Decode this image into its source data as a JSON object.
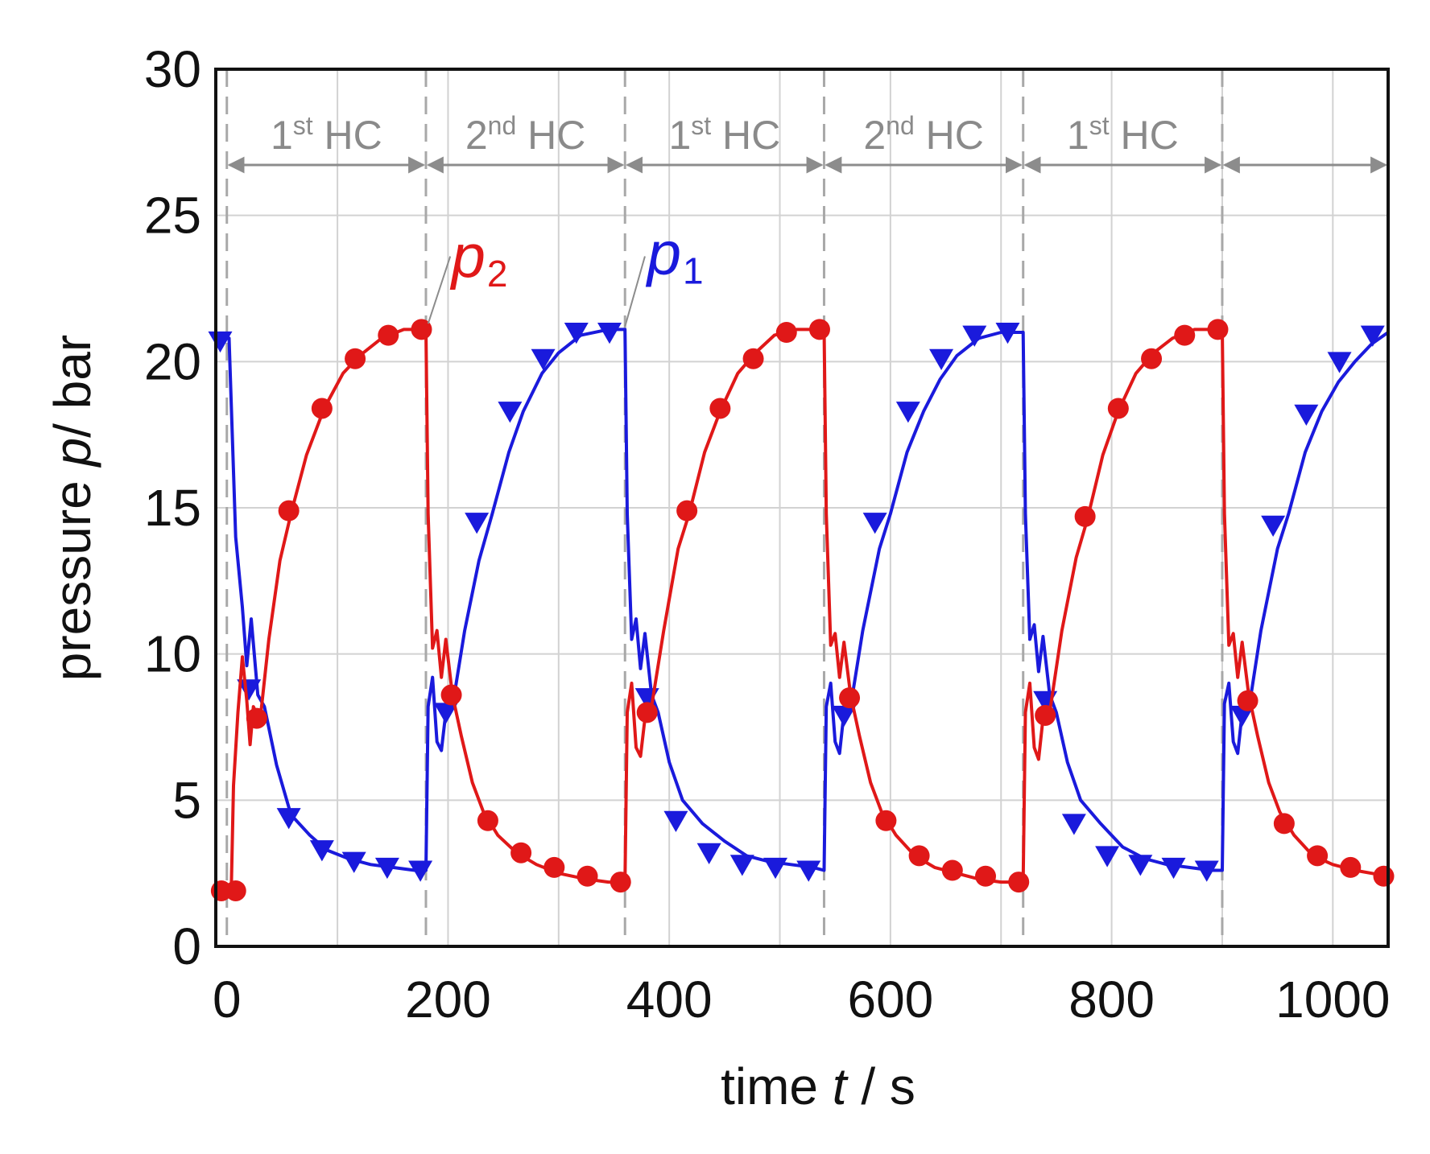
{
  "chart_data": {
    "type": "line",
    "title": "",
    "xlabel": {
      "prefix": "time ",
      "var": "t",
      "suffix": " / s"
    },
    "ylabel": {
      "prefix": "pressure ",
      "var": "p",
      "suffix": "/ bar"
    },
    "xlim": [
      -10,
      1050
    ],
    "ylim": [
      0,
      30
    ],
    "xticks": [
      0,
      200,
      400,
      600,
      800,
      1000
    ],
    "yticks": [
      0,
      5,
      10,
      15,
      20,
      25,
      30
    ],
    "grid": true,
    "switch_times": [
      0,
      180,
      360,
      540,
      720,
      900
    ],
    "half_cycles": [
      {
        "num": "1",
        "sup": "st",
        "rest": " HC",
        "start": 0,
        "end": 180
      },
      {
        "num": "2",
        "sup": "nd",
        "rest": " HC",
        "start": 180,
        "end": 360
      },
      {
        "num": "1",
        "sup": "st",
        "rest": " HC",
        "start": 360,
        "end": 540
      },
      {
        "num": "2",
        "sup": "nd",
        "rest": " HC",
        "start": 540,
        "end": 720
      },
      {
        "num": "1",
        "sup": "st",
        "rest": " HC",
        "start": 720,
        "end": 900
      },
      {
        "num": "",
        "sup": "",
        "rest": "",
        "start": 900,
        "end": 1050
      }
    ],
    "series": [
      {
        "name": "p1",
        "label_var": "p",
        "label_sub": "1",
        "color": "#1a1adc",
        "marker": "triangle-down",
        "curve": [
          [
            -8,
            20.8
          ],
          [
            2,
            20.8
          ],
          [
            8,
            14
          ],
          [
            14,
            11.6
          ],
          [
            18,
            9.6
          ],
          [
            22,
            11.2
          ],
          [
            28,
            8.6
          ],
          [
            34,
            8.2
          ],
          [
            45,
            6.2
          ],
          [
            58,
            4.5
          ],
          [
            75,
            3.8
          ],
          [
            90,
            3.3
          ],
          [
            110,
            3.0
          ],
          [
            130,
            2.8
          ],
          [
            150,
            2.7
          ],
          [
            170,
            2.6
          ],
          [
            180,
            2.6
          ],
          [
            182,
            8.2
          ],
          [
            186,
            9.2
          ],
          [
            190,
            7.0
          ],
          [
            194,
            6.7
          ],
          [
            198,
            8.0
          ],
          [
            204,
            8.2
          ],
          [
            215,
            10.8
          ],
          [
            228,
            13.2
          ],
          [
            240,
            14.8
          ],
          [
            255,
            16.9
          ],
          [
            268,
            18.3
          ],
          [
            285,
            19.6
          ],
          [
            300,
            20.3
          ],
          [
            320,
            20.9
          ],
          [
            345,
            21.1
          ],
          [
            360,
            21.1
          ],
          [
            362,
            14.8
          ],
          [
            366,
            10.5
          ],
          [
            370,
            11.2
          ],
          [
            374,
            9.5
          ],
          [
            378,
            10.7
          ],
          [
            384,
            8.6
          ],
          [
            390,
            8.0
          ],
          [
            400,
            6.3
          ],
          [
            412,
            5.0
          ],
          [
            430,
            4.2
          ],
          [
            450,
            3.6
          ],
          [
            470,
            3.1
          ],
          [
            490,
            2.9
          ],
          [
            510,
            2.8
          ],
          [
            530,
            2.7
          ],
          [
            540,
            2.6
          ],
          [
            542,
            8.2
          ],
          [
            546,
            9.0
          ],
          [
            550,
            7.0
          ],
          [
            554,
            6.6
          ],
          [
            558,
            8.0
          ],
          [
            564,
            8.2
          ],
          [
            575,
            10.8
          ],
          [
            590,
            13.6
          ],
          [
            600,
            14.8
          ],
          [
            615,
            16.9
          ],
          [
            630,
            18.3
          ],
          [
            645,
            19.4
          ],
          [
            660,
            20.2
          ],
          [
            680,
            20.8
          ],
          [
            700,
            21.0
          ],
          [
            720,
            21.0
          ],
          [
            722,
            14.8
          ],
          [
            726,
            10.5
          ],
          [
            730,
            11.0
          ],
          [
            734,
            9.4
          ],
          [
            738,
            10.6
          ],
          [
            744,
            8.6
          ],
          [
            750,
            8.0
          ],
          [
            760,
            6.3
          ],
          [
            772,
            5.0
          ],
          [
            790,
            4.2
          ],
          [
            810,
            3.4
          ],
          [
            830,
            3.0
          ],
          [
            850,
            2.8
          ],
          [
            870,
            2.7
          ],
          [
            890,
            2.6
          ],
          [
            900,
            2.6
          ],
          [
            902,
            8.3
          ],
          [
            906,
            9.0
          ],
          [
            910,
            7.0
          ],
          [
            914,
            6.6
          ],
          [
            918,
            8.0
          ],
          [
            924,
            8.1
          ],
          [
            935,
            10.8
          ],
          [
            950,
            13.6
          ],
          [
            960,
            14.8
          ],
          [
            975,
            16.9
          ],
          [
            990,
            18.3
          ],
          [
            1005,
            19.3
          ],
          [
            1020,
            20.0
          ],
          [
            1035,
            20.6
          ],
          [
            1050,
            21.0
          ]
        ],
        "markers": [
          [
            -6,
            20.7
          ],
          [
            20,
            8.8
          ],
          [
            56,
            4.4
          ],
          [
            86,
            3.3
          ],
          [
            115,
            2.9
          ],
          [
            145,
            2.7
          ],
          [
            175,
            2.6
          ],
          [
            198,
            8.0
          ],
          [
            226,
            14.5
          ],
          [
            256,
            18.3
          ],
          [
            286,
            20.1
          ],
          [
            316,
            21.0
          ],
          [
            346,
            21.0
          ],
          [
            380,
            8.5
          ],
          [
            406,
            4.3
          ],
          [
            436,
            3.2
          ],
          [
            466,
            2.8
          ],
          [
            496,
            2.7
          ],
          [
            526,
            2.6
          ],
          [
            558,
            7.9
          ],
          [
            586,
            14.5
          ],
          [
            616,
            18.3
          ],
          [
            646,
            20.1
          ],
          [
            676,
            20.9
          ],
          [
            706,
            21.0
          ],
          [
            740,
            8.4
          ],
          [
            766,
            4.2
          ],
          [
            796,
            3.1
          ],
          [
            826,
            2.8
          ],
          [
            856,
            2.7
          ],
          [
            886,
            2.6
          ],
          [
            918,
            7.9
          ],
          [
            946,
            14.4
          ],
          [
            976,
            18.2
          ],
          [
            1006,
            20.0
          ],
          [
            1036,
            20.9
          ]
        ]
      },
      {
        "name": "p2",
        "label_var": "p",
        "label_sub": "2",
        "color": "#e01818",
        "marker": "circle",
        "curve": [
          [
            -8,
            1.9
          ],
          [
            4,
            1.9
          ],
          [
            6,
            5.5
          ],
          [
            10,
            8.0
          ],
          [
            14,
            9.9
          ],
          [
            18,
            8.4
          ],
          [
            21,
            6.9
          ],
          [
            24,
            8.2
          ],
          [
            30,
            7.7
          ],
          [
            38,
            10.5
          ],
          [
            48,
            13.2
          ],
          [
            58,
            14.8
          ],
          [
            72,
            16.8
          ],
          [
            88,
            18.4
          ],
          [
            105,
            19.6
          ],
          [
            120,
            20.2
          ],
          [
            140,
            20.8
          ],
          [
            160,
            21.1
          ],
          [
            180,
            21.1
          ],
          [
            182,
            14.8
          ],
          [
            186,
            10.2
          ],
          [
            190,
            10.8
          ],
          [
            194,
            9.2
          ],
          [
            198,
            10.5
          ],
          [
            204,
            8.6
          ],
          [
            212,
            7.2
          ],
          [
            222,
            5.6
          ],
          [
            232,
            4.6
          ],
          [
            245,
            3.8
          ],
          [
            262,
            3.2
          ],
          [
            280,
            2.8
          ],
          [
            300,
            2.5
          ],
          [
            325,
            2.3
          ],
          [
            345,
            2.2
          ],
          [
            360,
            2.2
          ],
          [
            362,
            8.0
          ],
          [
            366,
            9.0
          ],
          [
            370,
            6.8
          ],
          [
            374,
            6.5
          ],
          [
            378,
            7.8
          ],
          [
            384,
            8.2
          ],
          [
            395,
            10.8
          ],
          [
            408,
            13.6
          ],
          [
            418,
            14.8
          ],
          [
            432,
            16.9
          ],
          [
            446,
            18.3
          ],
          [
            462,
            19.6
          ],
          [
            478,
            20.3
          ],
          [
            495,
            20.9
          ],
          [
            515,
            21.1
          ],
          [
            540,
            21.1
          ],
          [
            542,
            14.8
          ],
          [
            546,
            10.3
          ],
          [
            550,
            10.7
          ],
          [
            554,
            9.2
          ],
          [
            558,
            10.4
          ],
          [
            564,
            8.6
          ],
          [
            572,
            7.2
          ],
          [
            582,
            5.6
          ],
          [
            592,
            4.6
          ],
          [
            605,
            3.8
          ],
          [
            622,
            3.1
          ],
          [
            640,
            2.7
          ],
          [
            660,
            2.5
          ],
          [
            680,
            2.3
          ],
          [
            700,
            2.2
          ],
          [
            720,
            2.2
          ],
          [
            722,
            8.0
          ],
          [
            726,
            9.0
          ],
          [
            730,
            6.8
          ],
          [
            734,
            6.4
          ],
          [
            738,
            7.8
          ],
          [
            744,
            8.0
          ],
          [
            755,
            10.8
          ],
          [
            768,
            13.3
          ],
          [
            778,
            14.6
          ],
          [
            792,
            16.8
          ],
          [
            806,
            18.3
          ],
          [
            822,
            19.6
          ],
          [
            838,
            20.3
          ],
          [
            855,
            20.8
          ],
          [
            875,
            21.1
          ],
          [
            900,
            21.1
          ],
          [
            902,
            14.8
          ],
          [
            906,
            10.3
          ],
          [
            910,
            10.7
          ],
          [
            914,
            9.2
          ],
          [
            918,
            10.4
          ],
          [
            924,
            8.6
          ],
          [
            932,
            7.2
          ],
          [
            942,
            5.6
          ],
          [
            952,
            4.6
          ],
          [
            965,
            3.8
          ],
          [
            982,
            3.1
          ],
          [
            1000,
            2.8
          ],
          [
            1020,
            2.6
          ],
          [
            1050,
            2.4
          ]
        ],
        "markers": [
          [
            -5,
            1.9
          ],
          [
            8,
            1.9
          ],
          [
            27,
            7.8
          ],
          [
            56,
            14.9
          ],
          [
            86,
            18.4
          ],
          [
            116,
            20.1
          ],
          [
            146,
            20.9
          ],
          [
            176,
            21.1
          ],
          [
            203,
            8.6
          ],
          [
            236,
            4.3
          ],
          [
            266,
            3.2
          ],
          [
            296,
            2.7
          ],
          [
            326,
            2.4
          ],
          [
            356,
            2.2
          ],
          [
            380,
            8.0
          ],
          [
            416,
            14.9
          ],
          [
            446,
            18.4
          ],
          [
            476,
            20.1
          ],
          [
            506,
            21.0
          ],
          [
            536,
            21.1
          ],
          [
            563,
            8.5
          ],
          [
            596,
            4.3
          ],
          [
            626,
            3.1
          ],
          [
            656,
            2.6
          ],
          [
            686,
            2.4
          ],
          [
            716,
            2.2
          ],
          [
            740,
            7.9
          ],
          [
            776,
            14.7
          ],
          [
            806,
            18.4
          ],
          [
            836,
            20.1
          ],
          [
            866,
            20.9
          ],
          [
            896,
            21.1
          ],
          [
            923,
            8.4
          ],
          [
            956,
            4.2
          ],
          [
            986,
            3.1
          ],
          [
            1016,
            2.7
          ],
          [
            1046,
            2.4
          ]
        ]
      }
    ]
  }
}
